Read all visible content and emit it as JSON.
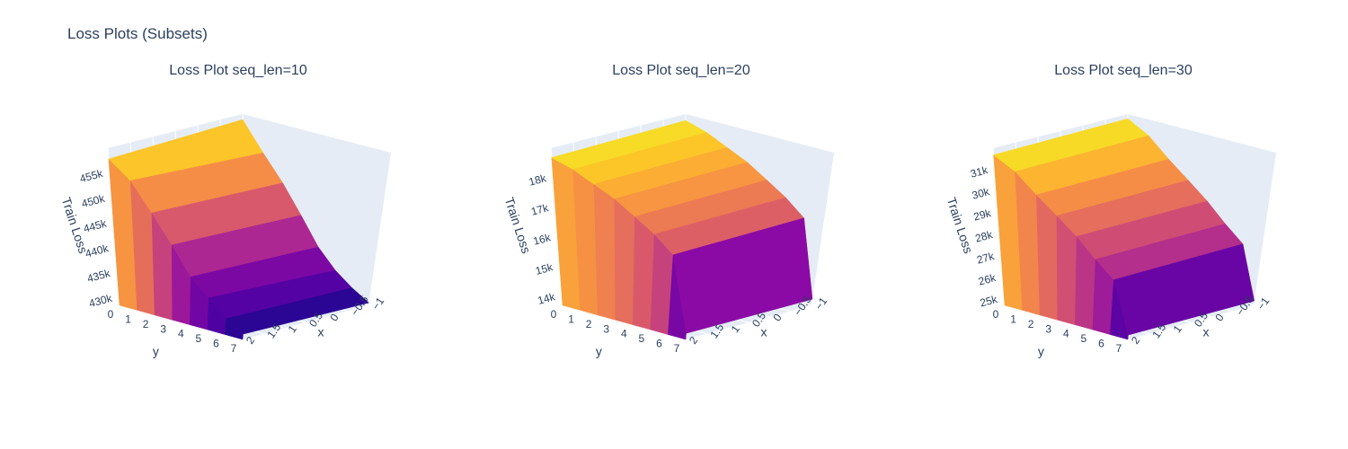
{
  "title": "Loss Plots (Subsets)",
  "chart_data": [
    {
      "type": "surface",
      "title": "Loss Plot seq_len=10",
      "xlabel": "x",
      "ylabel": "y",
      "zlabel": "Train Loss",
      "x_ticks": [
        "−1",
        "−0.5",
        "0",
        "0.5",
        "1",
        "1.5",
        "2"
      ],
      "y_ticks": [
        "0",
        "1",
        "2",
        "3",
        "4",
        "5",
        "6",
        "7"
      ],
      "z_ticks": [
        "430k",
        "435k",
        "440k",
        "445k",
        "450k",
        "455k"
      ],
      "zlim": [
        428000,
        457000
      ],
      "colorscale": "plasma",
      "z_values": [
        [
          455000,
          456000
        ],
        [
          452000,
          451000
        ],
        [
          447000,
          446500
        ],
        [
          442000,
          441500
        ],
        [
          437000,
          436500
        ],
        [
          434000,
          433000
        ],
        [
          431000,
          430500
        ],
        [
          429000,
          428500
        ]
      ]
    },
    {
      "type": "surface",
      "title": "Loss Plot seq_len=20",
      "xlabel": "x",
      "ylabel": "y",
      "zlabel": "Train Loss",
      "x_ticks": [
        "−1",
        "−0.5",
        "0",
        "0.5",
        "1",
        "1.5",
        "2"
      ],
      "y_ticks": [
        "0",
        "1",
        "2",
        "3",
        "4",
        "5",
        "6",
        "7"
      ],
      "z_ticks": [
        "14k",
        "15k",
        "16k",
        "17k",
        "18k"
      ],
      "zlim": [
        13800,
        18800
      ],
      "colorscale": "plasma",
      "z_values": [
        [
          18500,
          18600
        ],
        [
          18300,
          18400
        ],
        [
          18000,
          18100
        ],
        [
          17700,
          17800
        ],
        [
          17300,
          17400
        ],
        [
          16900,
          17000
        ],
        [
          16400,
          16500
        ],
        [
          14000,
          14000
        ]
      ]
    },
    {
      "type": "surface",
      "title": "Loss Plot seq_len=30",
      "xlabel": "x",
      "ylabel": "y",
      "zlabel": "Train Loss",
      "x_ticks": [
        "−1",
        "−0.5",
        "0",
        "0.5",
        "1",
        "1.5",
        "2"
      ],
      "y_ticks": [
        "0",
        "1",
        "2",
        "3",
        "4",
        "5",
        "6",
        "7"
      ],
      "z_ticks": [
        "25k",
        "26k",
        "27k",
        "28k",
        "29k",
        "30k",
        "31k"
      ],
      "zlim": [
        24800,
        31800
      ],
      "colorscale": "plasma",
      "z_values": [
        [
          31500,
          31600
        ],
        [
          31000,
          31100
        ],
        [
          30200,
          30300
        ],
        [
          29500,
          29600
        ],
        [
          28800,
          28900
        ],
        [
          28000,
          28100
        ],
        [
          27300,
          27400
        ],
        [
          25000,
          25000
        ]
      ]
    }
  ]
}
